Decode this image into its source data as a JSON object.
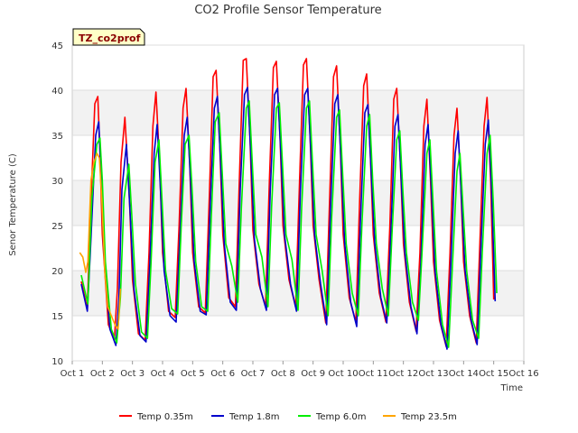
{
  "chart_data": {
    "type": "line",
    "title": "CO2 Profile Sensor Temperature",
    "xlabel": "Time",
    "ylabel": "Senor Temperature (C)",
    "badge": "TZ_co2prof",
    "ylim": [
      10,
      45
    ],
    "yticks": [
      10,
      15,
      20,
      25,
      30,
      35,
      40,
      45
    ],
    "xlim": [
      1,
      16
    ],
    "xticks": [
      1,
      2,
      3,
      4,
      5,
      6,
      7,
      8,
      9,
      10,
      11,
      12,
      13,
      14,
      15,
      16
    ],
    "xtick_labels": [
      "Oct 1",
      "Oct 2",
      "Oct 3",
      "Oct 4",
      "Oct 5",
      "Oct 6",
      "Oct 7",
      "Oct 8",
      "Oct 9",
      "Oct 10",
      "Oct 11",
      "Oct 12",
      "Oct 13",
      "Oct 14",
      "Oct 15",
      "Oct 16"
    ],
    "grid": "horizontal bands",
    "legend_position": "bottom",
    "series": [
      {
        "name": "Temp 0.35m",
        "color": "#ff0000",
        "x": [
          1.3,
          1.5,
          1.58,
          1.75,
          1.85,
          1.92,
          2.0,
          2.2,
          2.4,
          2.5,
          2.62,
          2.75,
          2.9,
          3.0,
          3.2,
          3.42,
          3.55,
          3.68,
          3.78,
          3.9,
          4.0,
          4.2,
          4.42,
          4.55,
          4.68,
          4.78,
          4.9,
          5.0,
          5.2,
          5.42,
          5.55,
          5.68,
          5.78,
          5.9,
          6.0,
          6.2,
          6.42,
          6.55,
          6.68,
          6.78,
          6.9,
          7.0,
          7.2,
          7.42,
          7.55,
          7.68,
          7.78,
          7.9,
          8.0,
          8.2,
          8.42,
          8.55,
          8.68,
          8.78,
          8.9,
          9.0,
          9.2,
          9.42,
          9.55,
          9.68,
          9.78,
          9.9,
          10.0,
          10.2,
          10.42,
          10.55,
          10.68,
          10.78,
          10.9,
          11.0,
          11.2,
          11.42,
          11.55,
          11.68,
          11.78,
          11.9,
          12.0,
          12.2,
          12.42,
          12.55,
          12.68,
          12.78,
          12.9,
          13.0,
          13.2,
          13.42,
          13.55,
          13.68,
          13.78,
          13.9,
          14.0,
          14.2,
          14.42,
          14.55,
          14.68,
          14.78,
          14.9,
          15.0
        ],
        "y": [
          18.8,
          15.8,
          24.0,
          38.5,
          39.3,
          33.0,
          24.0,
          14.0,
          12.4,
          18.0,
          32.0,
          37.0,
          28.0,
          19.0,
          13.0,
          12.3,
          22.0,
          36.0,
          39.8,
          32.0,
          22.0,
          15.5,
          14.8,
          25.0,
          38.0,
          40.2,
          32.0,
          22.0,
          16.0,
          15.3,
          28.0,
          41.5,
          42.2,
          34.0,
          24.0,
          17.0,
          16.0,
          30.0,
          43.3,
          43.5,
          35.0,
          24.5,
          18.5,
          16.0,
          30.0,
          42.5,
          43.2,
          35.0,
          25.0,
          19.0,
          16.0,
          30.0,
          42.8,
          43.5,
          35.0,
          25.0,
          19.0,
          14.2,
          28.0,
          41.5,
          42.7,
          34.0,
          24.0,
          17.0,
          14.3,
          28.0,
          40.5,
          41.8,
          33.0,
          24.0,
          17.5,
          14.3,
          25.0,
          39.0,
          40.2,
          32.0,
          23.0,
          16.5,
          13.3,
          22.0,
          36.0,
          39.0,
          30.0,
          21.0,
          14.5,
          11.6,
          22.0,
          35.0,
          38.0,
          30.0,
          21.0,
          15.0,
          12.0,
          24.0,
          36.0,
          39.2,
          30.0,
          16.8
        ]
      },
      {
        "name": "Temp 1.8m",
        "color": "#0000cc",
        "x": [
          1.3,
          1.5,
          1.6,
          1.78,
          1.88,
          1.95,
          2.05,
          2.25,
          2.45,
          2.55,
          2.65,
          2.8,
          2.93,
          3.05,
          3.25,
          3.45,
          3.58,
          3.72,
          3.82,
          3.93,
          4.05,
          4.25,
          4.45,
          4.58,
          4.72,
          4.82,
          4.93,
          5.05,
          5.25,
          5.45,
          5.58,
          5.72,
          5.82,
          5.93,
          6.05,
          6.25,
          6.45,
          6.58,
          6.72,
          6.82,
          6.93,
          7.05,
          7.25,
          7.45,
          7.58,
          7.72,
          7.82,
          7.93,
          8.05,
          8.25,
          8.45,
          8.58,
          8.72,
          8.82,
          8.93,
          9.05,
          9.25,
          9.45,
          9.58,
          9.72,
          9.82,
          9.93,
          10.05,
          10.25,
          10.45,
          10.58,
          10.72,
          10.82,
          10.93,
          11.05,
          11.25,
          11.45,
          11.58,
          11.72,
          11.82,
          11.93,
          12.05,
          12.25,
          12.45,
          12.58,
          12.72,
          12.82,
          12.93,
          13.05,
          13.25,
          13.45,
          13.58,
          13.72,
          13.82,
          13.93,
          14.05,
          14.25,
          14.45,
          14.58,
          14.72,
          14.82,
          14.93,
          15.05
        ],
        "y": [
          18.5,
          15.5,
          22.0,
          35.0,
          36.5,
          31.0,
          22.0,
          13.5,
          11.7,
          17.0,
          29.0,
          34.0,
          26.0,
          18.0,
          12.8,
          12.1,
          21.0,
          33.0,
          36.2,
          29.0,
          20.0,
          15.0,
          14.3,
          24.0,
          35.0,
          37.0,
          30.0,
          21.0,
          15.5,
          15.1,
          27.0,
          38.0,
          39.3,
          32.0,
          23.0,
          16.5,
          15.6,
          29.0,
          39.5,
          40.3,
          33.0,
          23.5,
          18.0,
          15.6,
          29.0,
          39.5,
          40.2,
          33.0,
          24.0,
          18.5,
          15.5,
          29.0,
          39.5,
          40.2,
          33.0,
          24.0,
          18.5,
          14.0,
          27.0,
          38.5,
          39.5,
          32.0,
          23.0,
          16.5,
          13.8,
          26.0,
          37.5,
          38.4,
          31.0,
          23.0,
          17.0,
          14.2,
          24.0,
          36.0,
          37.3,
          30.0,
          22.0,
          16.0,
          13.0,
          21.0,
          34.0,
          36.2,
          29.0,
          20.0,
          14.0,
          11.3,
          21.0,
          33.0,
          35.5,
          28.0,
          20.0,
          14.5,
          11.8,
          23.0,
          34.0,
          36.7,
          29.0,
          16.6
        ]
      },
      {
        "name": "Temp 6.0m",
        "color": "#00ee00",
        "x": [
          1.3,
          1.52,
          1.65,
          1.82,
          1.92,
          2.0,
          2.1,
          2.3,
          2.48,
          2.6,
          2.72,
          2.88,
          2.98,
          3.1,
          3.3,
          3.5,
          3.62,
          3.75,
          3.88,
          3.98,
          4.1,
          4.3,
          4.5,
          4.62,
          4.75,
          4.88,
          4.98,
          5.1,
          5.3,
          5.5,
          5.62,
          5.75,
          5.88,
          5.98,
          6.1,
          6.3,
          6.5,
          6.62,
          6.78,
          6.88,
          6.98,
          7.1,
          7.3,
          7.5,
          7.62,
          7.78,
          7.88,
          7.98,
          8.1,
          8.3,
          8.5,
          8.62,
          8.78,
          8.88,
          8.98,
          9.1,
          9.3,
          9.5,
          9.62,
          9.78,
          9.88,
          9.98,
          10.1,
          10.3,
          10.5,
          10.62,
          10.78,
          10.88,
          10.98,
          11.1,
          11.3,
          11.5,
          11.62,
          11.78,
          11.88,
          11.98,
          12.1,
          12.3,
          12.5,
          12.62,
          12.78,
          12.88,
          12.98,
          13.1,
          13.3,
          13.5,
          13.62,
          13.78,
          13.88,
          13.98,
          14.1,
          14.3,
          14.5,
          14.62,
          14.78,
          14.88,
          14.98,
          15.1
        ],
        "y": [
          19.5,
          16.3,
          28.0,
          34.0,
          34.7,
          30.0,
          21.0,
          13.5,
          12.0,
          17.0,
          28.0,
          31.8,
          26.0,
          18.5,
          13.2,
          12.5,
          21.0,
          32.0,
          34.5,
          28.0,
          20.0,
          15.8,
          15.2,
          25.0,
          34.0,
          35.0,
          29.0,
          21.0,
          16.0,
          15.5,
          26.0,
          36.5,
          37.5,
          31.0,
          23.0,
          20.5,
          16.5,
          27.0,
          38.0,
          38.8,
          32.0,
          24.0,
          21.5,
          16.0,
          27.0,
          38.0,
          38.6,
          32.0,
          24.0,
          21.2,
          15.6,
          27.0,
          38.0,
          38.8,
          32.0,
          24.0,
          20.0,
          15.0,
          26.0,
          37.0,
          37.8,
          31.0,
          23.0,
          17.5,
          15.0,
          25.0,
          36.0,
          37.3,
          30.0,
          23.0,
          18.0,
          15.0,
          24.0,
          34.5,
          35.5,
          29.0,
          22.0,
          16.5,
          14.5,
          22.0,
          33.0,
          34.5,
          28.0,
          20.0,
          14.0,
          11.5,
          20.0,
          31.0,
          33.0,
          27.0,
          20.0,
          14.5,
          12.5,
          22.0,
          33.0,
          35.0,
          28.0,
          17.5
        ]
      },
      {
        "name": "Temp 23.5m",
        "color": "#ffa500",
        "x": [
          1.25,
          1.35,
          1.45,
          1.52,
          1.62,
          1.72,
          1.82,
          1.9,
          1.98,
          2.08,
          2.18,
          2.3,
          2.42,
          2.52,
          2.6
        ],
        "y": [
          22.0,
          21.5,
          19.8,
          21.0,
          30.0,
          32.0,
          33.0,
          32.5,
          28.0,
          20.0,
          16.0,
          15.0,
          14.0,
          13.5,
          18.0
        ]
      }
    ]
  }
}
